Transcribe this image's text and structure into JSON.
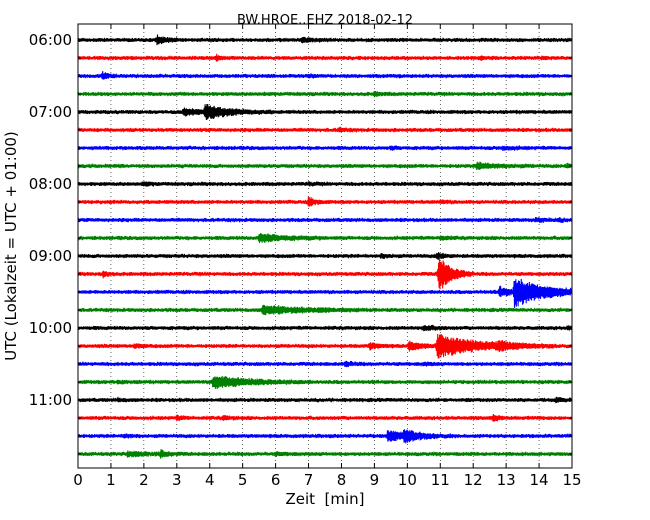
{
  "chart_data": {
    "type": "line",
    "title": "BW.HROE..EHZ 2018-02-12",
    "xlabel": "Zeit  [min]",
    "ylabel": "UTC (Lokalzeit = UTC + 01:00)",
    "xlim": [
      0,
      15
    ],
    "x_ticks": [
      "0",
      "1",
      "2",
      "3",
      "4",
      "5",
      "6",
      "7",
      "8",
      "9",
      "10",
      "11",
      "12",
      "13",
      "14",
      "15"
    ],
    "y_tick_labels": [
      "06:00",
      "07:00",
      "08:00",
      "09:00",
      "10:00",
      "11:00"
    ],
    "grid": "vertical dotted",
    "trace_colors": [
      "#000000",
      "#ff0000",
      "#0000ff",
      "#008000"
    ],
    "traces": [
      {
        "start": "06:00",
        "events": [
          {
            "t": 2.4,
            "amp": 0.85,
            "dur": 0.25
          },
          {
            "t": 6.8,
            "amp": 0.4,
            "dur": 0.3
          }
        ]
      },
      {
        "start": "06:15",
        "events": [
          {
            "t": 4.2,
            "amp": 0.55,
            "dur": 0.15
          },
          {
            "t": 12.2,
            "amp": 0.2,
            "dur": 0.2
          },
          {
            "t": 14.1,
            "amp": 0.25,
            "dur": 0.15
          }
        ]
      },
      {
        "start": "06:30",
        "events": [
          {
            "t": 0.75,
            "amp": 0.65,
            "dur": 0.15
          },
          {
            "t": 7.0,
            "amp": 0.2,
            "dur": 0.2
          }
        ]
      },
      {
        "start": "06:45",
        "events": [
          {
            "t": 9.0,
            "amp": 0.3,
            "dur": 0.2
          }
        ]
      },
      {
        "start": "07:00",
        "events": [
          {
            "t": 3.2,
            "amp": 0.6,
            "dur": 0.5
          },
          {
            "t": 3.85,
            "amp": 1.3,
            "dur": 0.7
          }
        ]
      },
      {
        "start": "07:15",
        "events": [
          {
            "t": 7.9,
            "amp": 0.3,
            "dur": 0.2
          }
        ]
      },
      {
        "start": "07:30",
        "events": [
          {
            "t": 9.5,
            "amp": 0.2,
            "dur": 0.2
          },
          {
            "t": 12.9,
            "amp": 0.3,
            "dur": 0.3
          }
        ]
      },
      {
        "start": "07:45",
        "events": [
          {
            "t": 12.1,
            "amp": 0.55,
            "dur": 0.6
          },
          {
            "t": 14.85,
            "amp": 0.35,
            "dur": 0.2
          }
        ]
      },
      {
        "start": "08:00",
        "events": [
          {
            "t": 2.0,
            "amp": 0.25,
            "dur": 0.2
          },
          {
            "t": 7.0,
            "amp": 0.2,
            "dur": 0.2
          }
        ]
      },
      {
        "start": "08:15",
        "events": [
          {
            "t": 7.0,
            "amp": 0.85,
            "dur": 0.2
          },
          {
            "t": 11.0,
            "amp": 0.2,
            "dur": 0.2
          }
        ]
      },
      {
        "start": "08:30",
        "events": [
          {
            "t": 13.9,
            "amp": 0.3,
            "dur": 0.3
          },
          {
            "t": 14.6,
            "amp": 0.2,
            "dur": 0.2
          }
        ]
      },
      {
        "start": "08:45",
        "events": [
          {
            "t": 5.5,
            "amp": 0.8,
            "dur": 0.7
          },
          {
            "t": 11.0,
            "amp": 0.35,
            "dur": 0.2
          }
        ]
      },
      {
        "start": "09:00",
        "events": [
          {
            "t": 9.2,
            "amp": 0.3,
            "dur": 0.2
          },
          {
            "t": 10.9,
            "amp": 0.6,
            "dur": 0.2
          }
        ]
      },
      {
        "start": "09:15",
        "events": [
          {
            "t": 0.75,
            "amp": 0.55,
            "dur": 0.15
          },
          {
            "t": 10.95,
            "amp": 3.6,
            "dur": 0.35
          }
        ]
      },
      {
        "start": "09:30",
        "events": [
          {
            "t": 13.25,
            "amp": 2.8,
            "dur": 0.9
          },
          {
            "t": 12.8,
            "amp": 0.9,
            "dur": 0.3
          }
        ]
      },
      {
        "start": "09:45",
        "events": [
          {
            "t": 5.6,
            "amp": 0.8,
            "dur": 1.1
          },
          {
            "t": 7.3,
            "amp": 0.2,
            "dur": 0.3
          }
        ]
      },
      {
        "start": "10:00",
        "events": [
          {
            "t": 10.5,
            "amp": 0.4,
            "dur": 0.3
          },
          {
            "t": 14.85,
            "amp": 0.2,
            "dur": 0.15
          }
        ]
      },
      {
        "start": "10:15",
        "events": [
          {
            "t": 10.9,
            "amp": 2.2,
            "dur": 1.2
          },
          {
            "t": 10.05,
            "amp": 0.9,
            "dur": 0.3
          },
          {
            "t": 8.85,
            "amp": 0.55,
            "dur": 0.25
          },
          {
            "t": 12.75,
            "amp": 0.6,
            "dur": 0.3
          },
          {
            "t": 1.7,
            "amp": 0.4,
            "dur": 0.2
          }
        ]
      },
      {
        "start": "10:30",
        "events": [
          {
            "t": 8.1,
            "amp": 0.45,
            "dur": 0.2
          },
          {
            "t": 10.5,
            "amp": 0.2,
            "dur": 0.2
          }
        ]
      },
      {
        "start": "10:45",
        "events": [
          {
            "t": 4.1,
            "amp": 1.2,
            "dur": 1.0
          },
          {
            "t": 1.2,
            "amp": 0.2,
            "dur": 0.3
          }
        ]
      },
      {
        "start": "11:00",
        "events": [
          {
            "t": 14.5,
            "amp": 0.3,
            "dur": 0.2
          },
          {
            "t": 1.2,
            "amp": 0.2,
            "dur": 0.2
          }
        ]
      },
      {
        "start": "11:15",
        "events": [
          {
            "t": 12.6,
            "amp": 0.55,
            "dur": 0.2
          },
          {
            "t": 3.0,
            "amp": 0.3,
            "dur": 0.2
          },
          {
            "t": 4.4,
            "amp": 0.3,
            "dur": 0.2
          }
        ]
      },
      {
        "start": "11:30",
        "events": [
          {
            "t": 9.4,
            "amp": 1.0,
            "dur": 0.5
          },
          {
            "t": 9.9,
            "amp": 0.9,
            "dur": 0.5
          },
          {
            "t": 1.4,
            "amp": 0.3,
            "dur": 0.2
          }
        ]
      },
      {
        "start": "11:45",
        "events": [
          {
            "t": 1.5,
            "amp": 0.4,
            "dur": 0.6
          },
          {
            "t": 2.5,
            "amp": 0.6,
            "dur": 0.2
          },
          {
            "t": 6.0,
            "amp": 0.2,
            "dur": 0.3
          }
        ]
      }
    ]
  }
}
